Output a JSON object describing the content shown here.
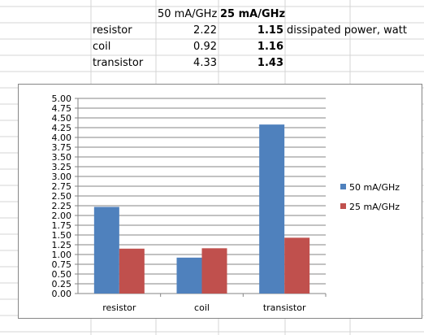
{
  "sheet": {
    "headers": [
      "50 mA/GHz",
      "25 mA/GHz"
    ],
    "rows": [
      {
        "label": "resistor",
        "v50": "2.22",
        "v25": "1.15",
        "note": "dissipated power, watt"
      },
      {
        "label": "coil",
        "v50": "0.92",
        "v25": "1.16",
        "note": ""
      },
      {
        "label": "transistor",
        "v50": "4.33",
        "v25": "1.43",
        "note": ""
      }
    ]
  },
  "colors": {
    "series1": "#4F81BD",
    "series2": "#C0504D",
    "gridline": "#868686",
    "sheet_grid": "#D4D4D4"
  },
  "chart_data": {
    "type": "bar",
    "categories": [
      "resistor",
      "coil",
      "transistor"
    ],
    "series": [
      {
        "name": "50 mA/GHz",
        "values": [
          2.22,
          0.92,
          4.33
        ]
      },
      {
        "name": "25 mA/GHz",
        "values": [
          1.15,
          1.16,
          1.43
        ]
      }
    ],
    "ylim": [
      0,
      5
    ],
    "ytick_step": 0.25,
    "ytick_labels": [
      "0.00",
      "0.25",
      "0.50",
      "0.75",
      "1.00",
      "1.25",
      "1.50",
      "1.75",
      "2.00",
      "2.25",
      "2.50",
      "2.75",
      "3.00",
      "3.25",
      "3.50",
      "3.75",
      "4.00",
      "4.25",
      "4.50",
      "4.75",
      "5.00"
    ],
    "grid": true,
    "legend_position": "right",
    "title": "",
    "xlabel": "",
    "ylabel": ""
  }
}
